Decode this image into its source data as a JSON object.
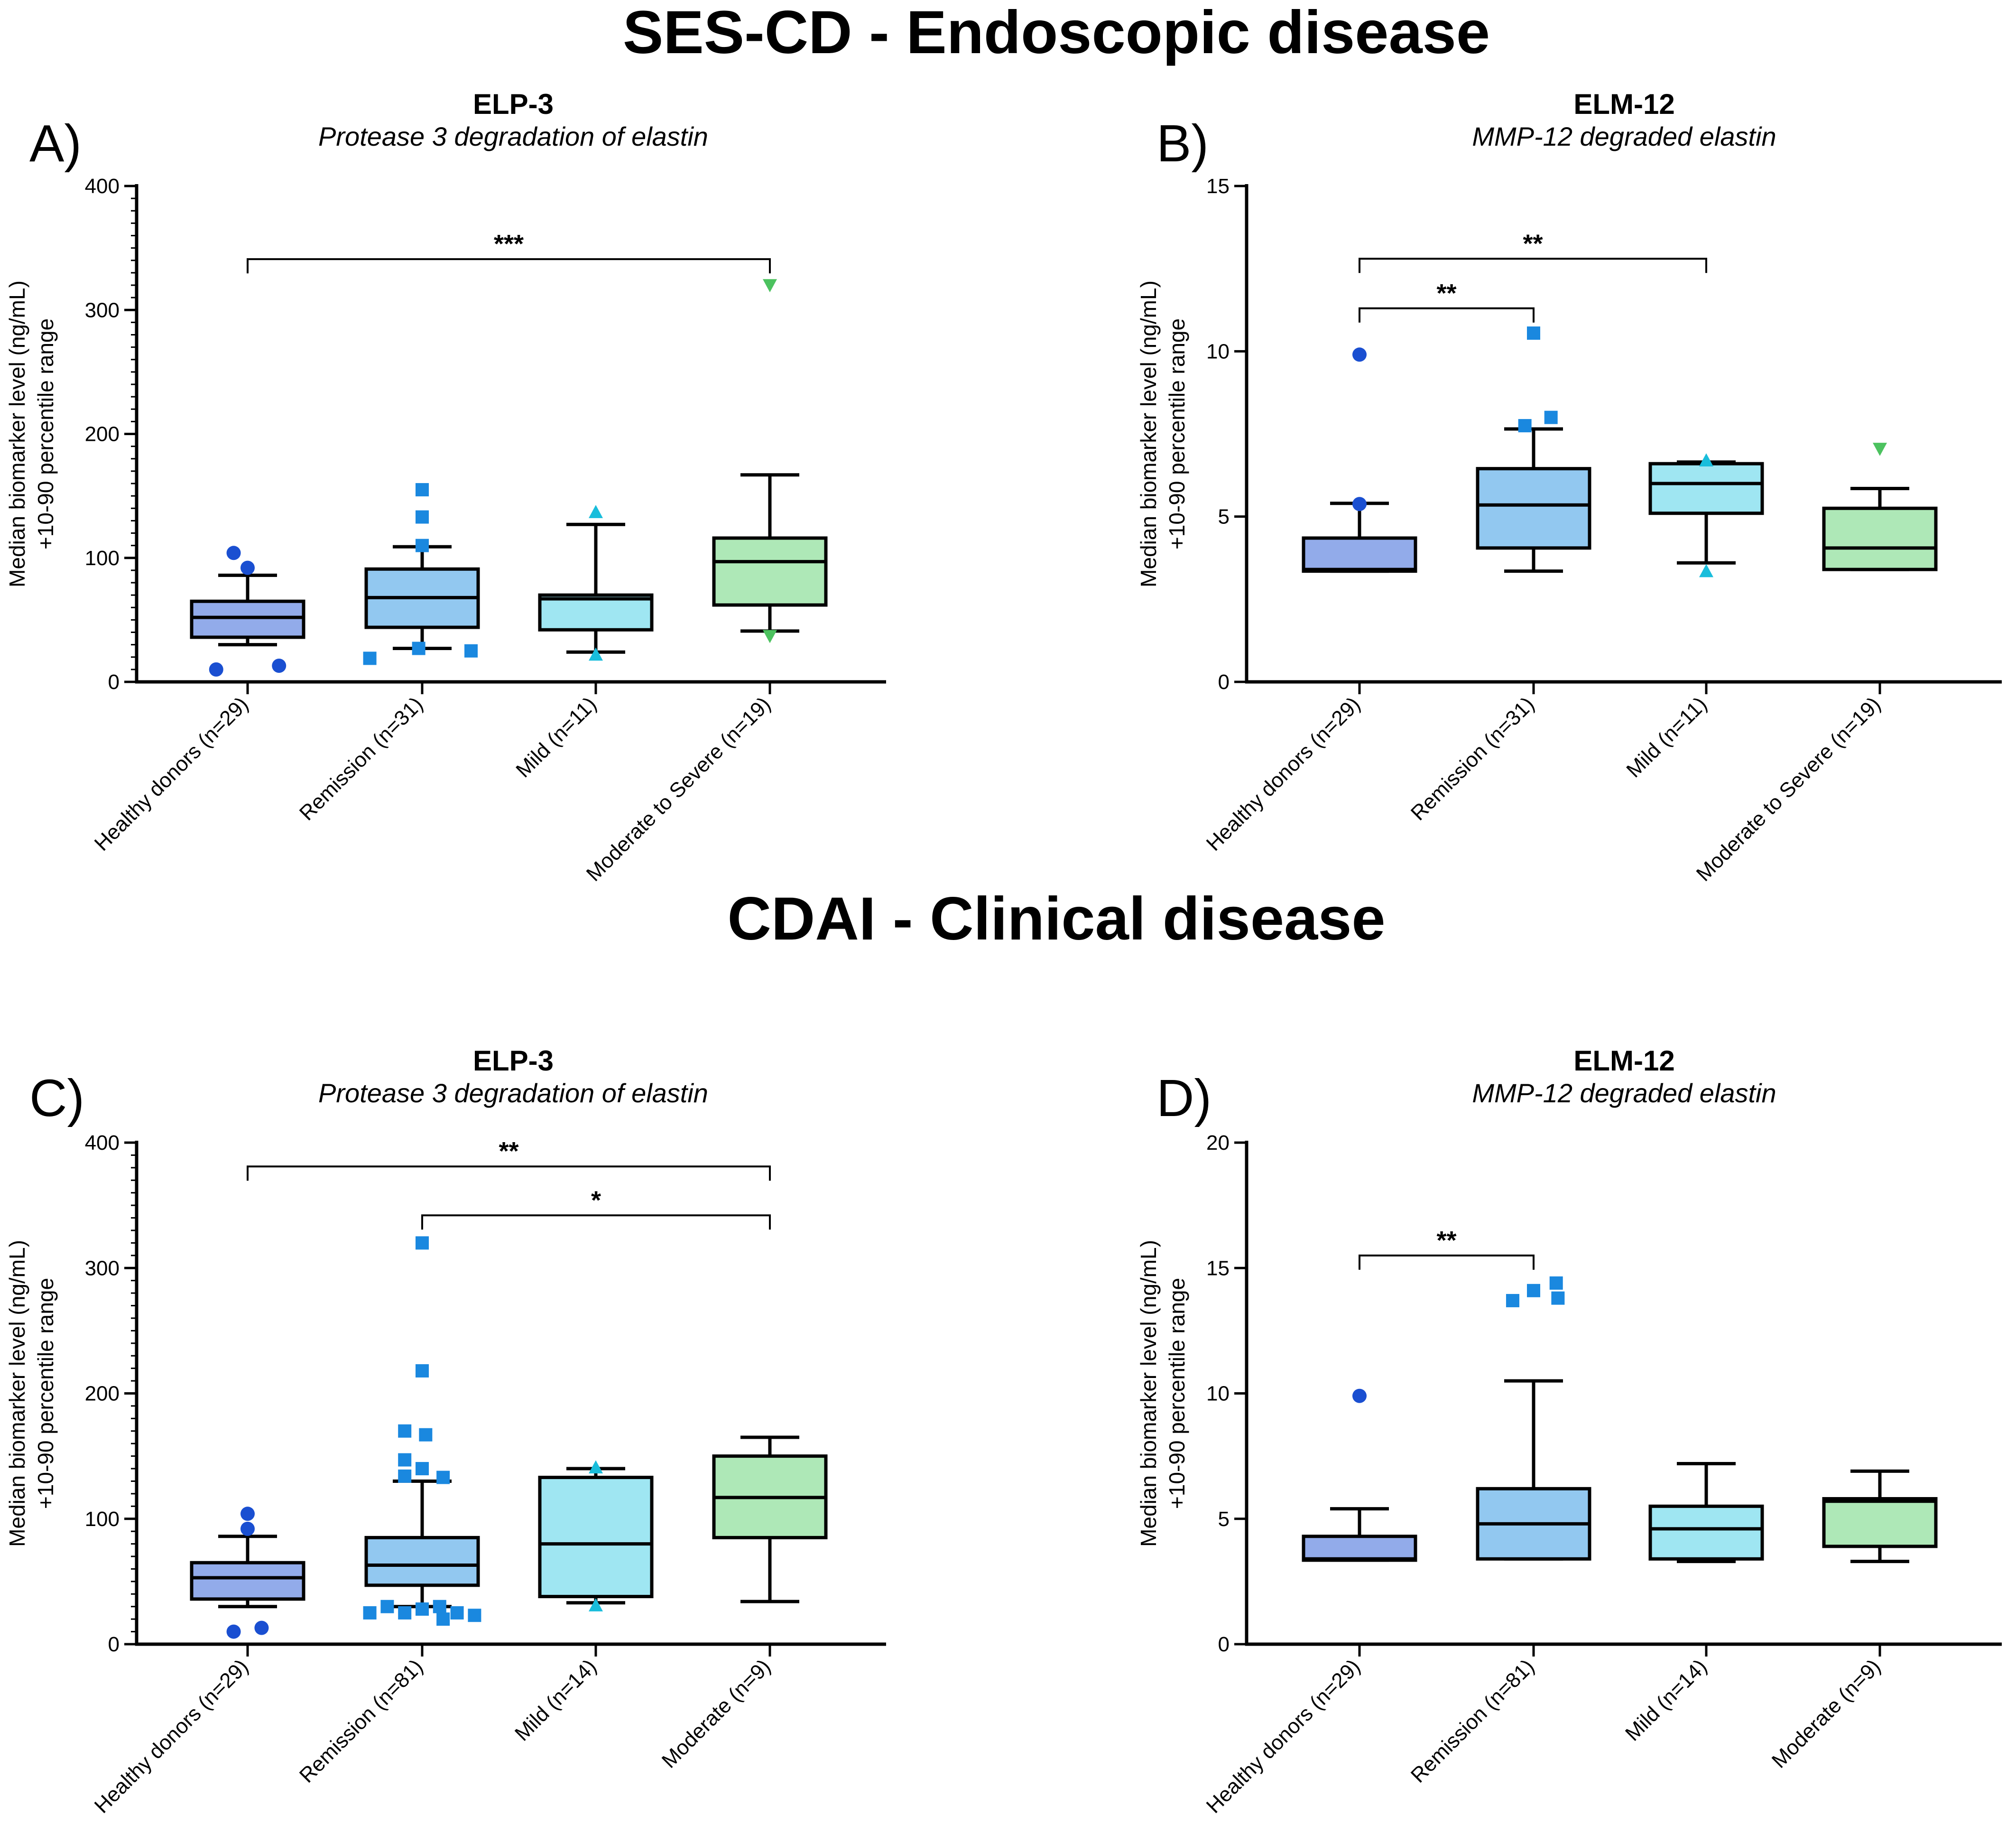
{
  "section_titles": {
    "top": "SES-CD - Endoscopic disease",
    "bottom": "CDAI - Clinical disease"
  },
  "colors": {
    "box_fills": [
      "#92abea",
      "#92c8f0",
      "#9fe6f2",
      "#aee8b7"
    ],
    "outlier_colors": [
      "#1a4fd1",
      "#1a88df",
      "#19bddb",
      "#4cc25f"
    ],
    "line": "#000000"
  },
  "y_axis_label_lines": [
    "Median biomarker level  (ng/mL)",
    "+10-90 percentile range"
  ],
  "chart_data": [
    {
      "id": "A",
      "letter": "A)",
      "type": "box",
      "title": "ELP-3",
      "subtitle": "Protease 3 degradation of elastin",
      "ylim": [
        0,
        400
      ],
      "yticks": [
        0,
        100,
        200,
        300,
        400
      ],
      "ytick_labels": [
        "0",
        "100",
        "200",
        "300",
        "400"
      ],
      "minor_ticks_per_major": 10,
      "categories": [
        "Healthy donors (n=29)",
        "Remission (n=31)",
        "Mild (n=11)",
        "Moderate to Severe (n=19)"
      ],
      "markers": [
        "circle",
        "square",
        "triangle-up",
        "triangle-down"
      ],
      "series": [
        {
          "name": "Healthy donors (n=29)",
          "whisker_low": 30,
          "q1": 36,
          "median": 52,
          "q3": 65,
          "whisker_high": 86,
          "outliers": [
            {
              "v": 104,
              "o": -0.08
            },
            {
              "v": 92,
              "o": 0.0
            },
            {
              "v": 10,
              "o": -0.18
            },
            {
              "v": 13,
              "o": 0.18
            }
          ]
        },
        {
          "name": "Remission (n=31)",
          "whisker_low": 27,
          "q1": 44,
          "median": 68,
          "q3": 91,
          "whisker_high": 109,
          "outliers": [
            {
              "v": 155,
              "o": 0.0
            },
            {
              "v": 133,
              "o": 0.0
            },
            {
              "v": 110,
              "o": 0.0
            },
            {
              "v": 19,
              "o": -0.3
            },
            {
              "v": 27,
              "o": -0.02
            },
            {
              "v": 25,
              "o": 0.28
            }
          ]
        },
        {
          "name": "Mild (n=11)",
          "whisker_low": 24,
          "q1": 42,
          "median": 67,
          "q3": 70,
          "whisker_high": 127,
          "outliers": [
            {
              "v": 137,
              "o": 0.0
            },
            {
              "v": 22,
              "o": 0.0
            }
          ]
        },
        {
          "name": "Moderate to Severe (n=19)",
          "whisker_low": 41,
          "q1": 62,
          "median": 97,
          "q3": 116,
          "whisker_high": 167,
          "outliers": [
            {
              "v": 320,
              "o": 0.0
            },
            {
              "v": 37,
              "o": 0.0
            }
          ]
        }
      ],
      "significance": [
        {
          "from": 0,
          "to": 3,
          "y": 341,
          "label": "***"
        }
      ]
    },
    {
      "id": "B",
      "letter": "B)",
      "type": "box",
      "title": "ELM-12",
      "subtitle": "MMP-12 degraded elastin",
      "ylim": [
        0,
        15
      ],
      "yticks": [
        0,
        5,
        10,
        15
      ],
      "ytick_labels": [
        "0",
        "5",
        "10",
        "15"
      ],
      "minor_ticks_per_major": 0,
      "categories": [
        "Healthy donors (n=29)",
        "Remission (n=31)",
        "Mild (n=11)",
        "Moderate to Severe (n=19)"
      ],
      "markers": [
        "circle",
        "square",
        "triangle-up",
        "triangle-down"
      ],
      "series": [
        {
          "name": "Healthy donors (n=29)",
          "whisker_low": 3.35,
          "q1": 3.35,
          "median": 3.4,
          "q3": 4.35,
          "whisker_high": 5.4,
          "outliers": [
            {
              "v": 9.9,
              "o": 0.0
            },
            {
              "v": 5.38,
              "o": 0.0
            }
          ]
        },
        {
          "name": "Remission (n=31)",
          "whisker_low": 3.35,
          "q1": 4.05,
          "median": 5.35,
          "q3": 6.45,
          "whisker_high": 7.65,
          "outliers": [
            {
              "v": 10.55,
              "o": 0.0
            },
            {
              "v": 8.0,
              "o": 0.1
            },
            {
              "v": 7.75,
              "o": -0.05
            }
          ]
        },
        {
          "name": "Mild (n=11)",
          "whisker_low": 3.6,
          "q1": 5.1,
          "median": 6.0,
          "q3": 6.6,
          "whisker_high": 6.65,
          "outliers": [
            {
              "v": 6.7,
              "o": 0.0
            },
            {
              "v": 3.35,
              "o": 0.0
            }
          ]
        },
        {
          "name": "Moderate to Severe (n=19)",
          "whisker_low": 3.4,
          "q1": 3.4,
          "median": 4.05,
          "q3": 5.25,
          "whisker_high": 5.85,
          "outliers": [
            {
              "v": 7.05,
              "o": 0.0
            }
          ]
        }
      ],
      "significance": [
        {
          "from": 0,
          "to": 2,
          "y": 12.8,
          "label": "**"
        },
        {
          "from": 0,
          "to": 1,
          "y": 11.3,
          "label": "**"
        }
      ]
    },
    {
      "id": "C",
      "letter": "C)",
      "type": "box",
      "title": "ELP-3",
      "subtitle": "Protease 3 degradation of elastin",
      "ylim": [
        0,
        400
      ],
      "yticks": [
        0,
        100,
        200,
        300,
        400
      ],
      "ytick_labels": [
        "0",
        "100",
        "200",
        "300",
        "400"
      ],
      "minor_ticks_per_major": 10,
      "categories": [
        "Healthy donors (n=29)",
        "Remission (n=81)",
        "Mild (n=14)",
        "Moderate (n=9)"
      ],
      "markers": [
        "circle",
        "square",
        "triangle-up",
        "triangle-down"
      ],
      "series": [
        {
          "name": "Healthy donors (n=29)",
          "whisker_low": 30,
          "q1": 36,
          "median": 53,
          "q3": 65,
          "whisker_high": 86,
          "outliers": [
            {
              "v": 104,
              "o": 0.0
            },
            {
              "v": 92,
              "o": 0.0
            },
            {
              "v": 10,
              "o": -0.08
            },
            {
              "v": 13,
              "o": 0.08
            }
          ]
        },
        {
          "name": "Remission (n=81)",
          "whisker_low": 30,
          "q1": 47,
          "median": 63,
          "q3": 85,
          "whisker_high": 130,
          "outliers": [
            {
              "v": 320,
              "o": 0.0
            },
            {
              "v": 218,
              "o": 0.0
            },
            {
              "v": 170,
              "o": -0.1
            },
            {
              "v": 167,
              "o": 0.02
            },
            {
              "v": 147,
              "o": -0.1
            },
            {
              "v": 140,
              "o": 0.0
            },
            {
              "v": 134,
              "o": -0.1
            },
            {
              "v": 133,
              "o": 0.12
            },
            {
              "v": 25,
              "o": -0.3
            },
            {
              "v": 30,
              "o": -0.2
            },
            {
              "v": 25,
              "o": -0.1
            },
            {
              "v": 28,
              "o": 0.0
            },
            {
              "v": 30,
              "o": 0.1
            },
            {
              "v": 20,
              "o": 0.12
            },
            {
              "v": 25,
              "o": 0.2
            },
            {
              "v": 23,
              "o": 0.3
            }
          ]
        },
        {
          "name": "Mild (n=14)",
          "whisker_low": 33,
          "q1": 38,
          "median": 80,
          "q3": 133,
          "whisker_high": 140,
          "outliers": [
            {
              "v": 141,
              "o": 0.0
            },
            {
              "v": 31,
              "o": 0.0
            }
          ]
        },
        {
          "name": "Moderate (n=9)",
          "whisker_low": 34,
          "q1": 85,
          "median": 117,
          "q3": 150,
          "whisker_high": 165,
          "outliers": []
        }
      ],
      "significance": [
        {
          "from": 0,
          "to": 3,
          "y": 381,
          "label": "**"
        },
        {
          "from": 1,
          "to": 3,
          "y": 342,
          "label": "*"
        }
      ]
    },
    {
      "id": "D",
      "letter": "D)",
      "type": "box",
      "title": "ELM-12",
      "subtitle": "MMP-12 degraded elastin",
      "ylim": [
        0,
        20
      ],
      "yticks": [
        0,
        5,
        10,
        15,
        20
      ],
      "ytick_labels": [
        "0",
        "5",
        "10",
        "15",
        "20"
      ],
      "minor_ticks_per_major": 0,
      "categories": [
        "Healthy donors (n=29)",
        "Remission (n=81)",
        "Mild (n=14)",
        "Moderate (n=9)"
      ],
      "markers": [
        "circle",
        "square",
        "triangle-up",
        "triangle-down"
      ],
      "series": [
        {
          "name": "Healthy donors (n=29)",
          "whisker_low": 3.35,
          "q1": 3.35,
          "median": 3.4,
          "q3": 4.3,
          "whisker_high": 5.4,
          "outliers": [
            {
              "v": 9.9,
              "o": 0.0
            }
          ]
        },
        {
          "name": "Remission (n=81)",
          "whisker_low": 3.4,
          "q1": 3.4,
          "median": 4.8,
          "q3": 6.2,
          "whisker_high": 10.5,
          "outliers": [
            {
              "v": 13.7,
              "o": -0.12
            },
            {
              "v": 14.1,
              "o": 0.0
            },
            {
              "v": 14.4,
              "o": 0.13
            },
            {
              "v": 13.8,
              "o": 0.14
            }
          ]
        },
        {
          "name": "Mild (n=14)",
          "whisker_low": 3.3,
          "q1": 3.4,
          "median": 4.6,
          "q3": 5.5,
          "whisker_high": 7.2,
          "outliers": []
        },
        {
          "name": "Moderate (n=9)",
          "whisker_low": 3.3,
          "q1": 3.9,
          "median": 5.7,
          "q3": 5.8,
          "whisker_high": 6.9,
          "outliers": []
        }
      ],
      "significance": [
        {
          "from": 0,
          "to": 1,
          "y": 15.5,
          "label": "**"
        }
      ]
    }
  ]
}
